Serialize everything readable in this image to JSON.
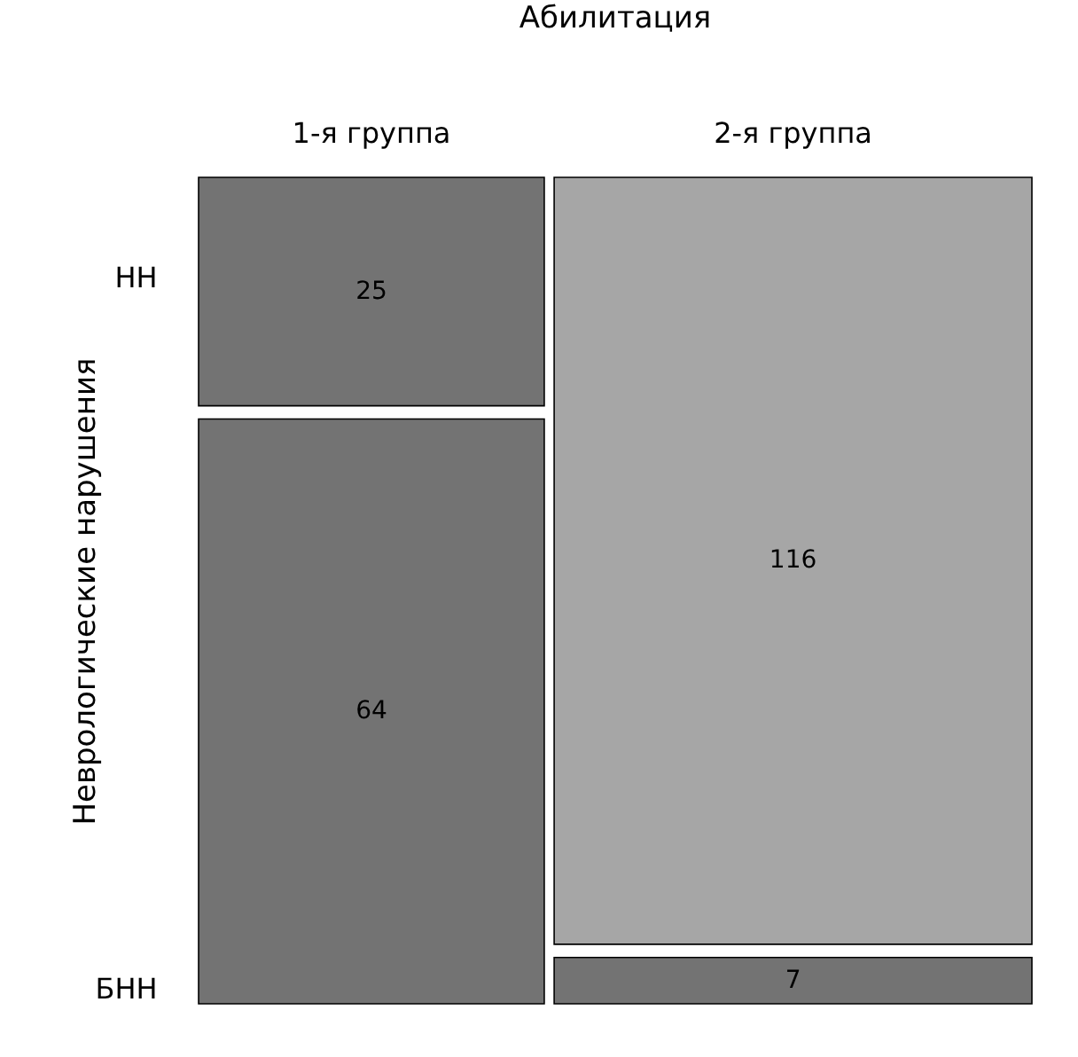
{
  "chart_data": {
    "type": "heatmap",
    "title": "Абилитация",
    "ylabel": "Неврологические нарушения",
    "categories": [
      "1-я группа",
      "2-я группа"
    ],
    "y_categories": [
      "НН",
      "БНН"
    ],
    "cells": [
      [
        25,
        116
      ],
      [
        64,
        7
      ]
    ],
    "data_labels": true,
    "colors": [
      "#737373",
      "#a6a6a6",
      "#737373",
      "#737373"
    ]
  }
}
